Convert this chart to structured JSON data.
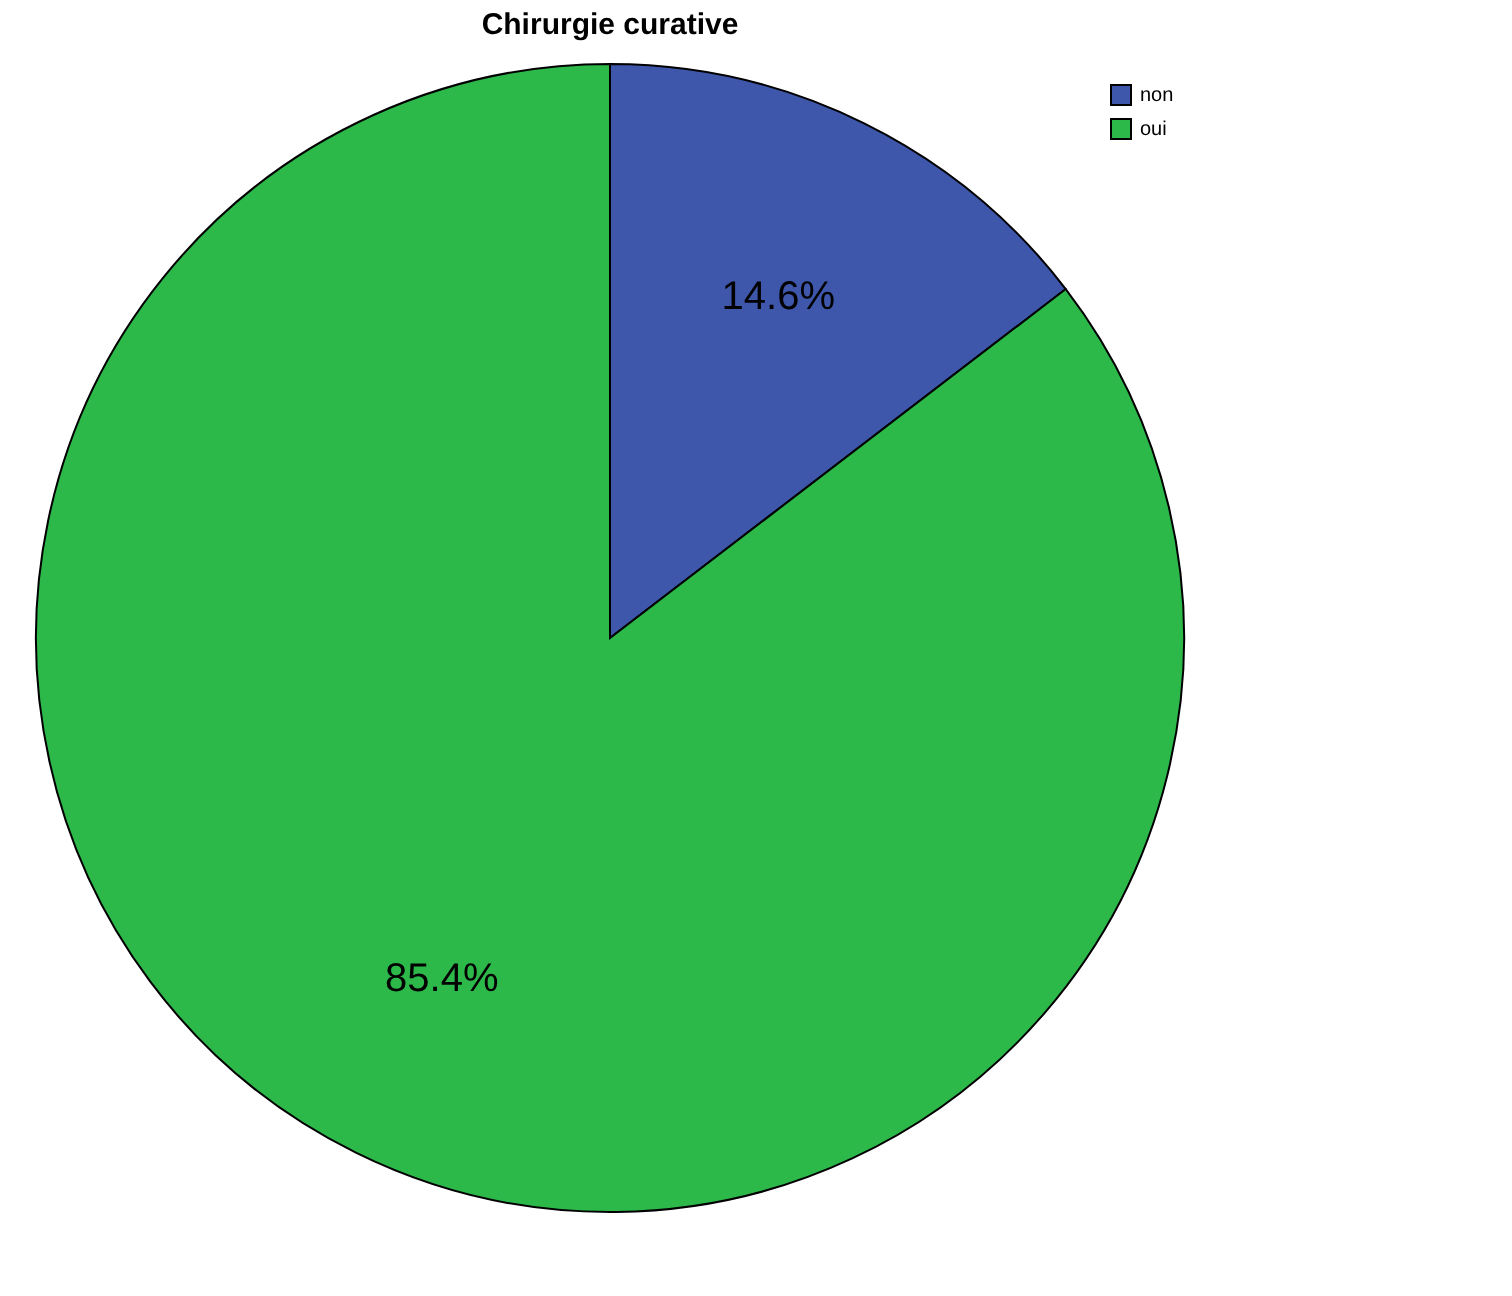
{
  "chart_data": {
    "type": "pie",
    "title": "Chirurgie curative",
    "categories": [
      "non",
      "oui"
    ],
    "values": [
      14.6,
      85.4
    ],
    "colors": [
      "#3e57ab",
      "#2db84a"
    ],
    "value_labels": [
      "14.6%",
      "85.4%"
    ],
    "legend": "top right"
  }
}
